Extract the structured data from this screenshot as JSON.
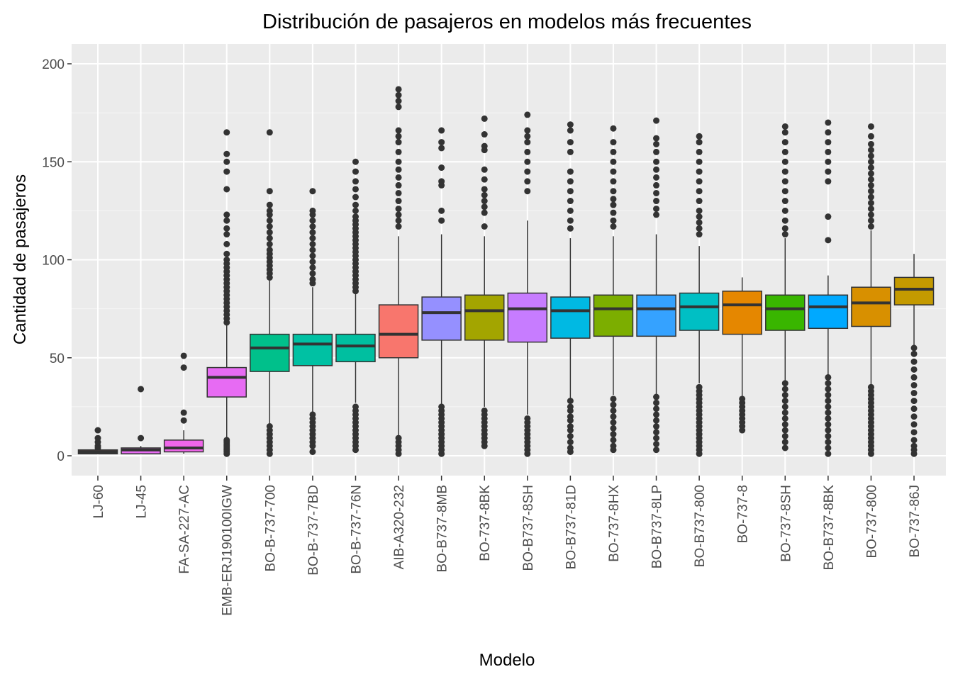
{
  "chart_data": {
    "type": "boxplot",
    "title": "Distribución de pasajeros en modelos más frecuentes",
    "xlabel": "Modelo",
    "ylabel": "Cantidad de pasajeros",
    "ylim": [
      -10,
      210
    ],
    "yticks": [
      0,
      50,
      100,
      150,
      200
    ],
    "grid": true,
    "legend": "none",
    "categories": [
      "LJ-60",
      "LJ-45",
      "FA-SA-227-AC",
      "EMB-ERJ190100IGW",
      "BO-B-737-700",
      "BO-B-737-7BD",
      "BO-B-737-76N",
      "AIB-A320-232",
      "BO-B737-8MB",
      "BO-737-8BK",
      "BO-B737-8SH",
      "BO-B737-81D",
      "BO-737-8HX",
      "BO-B737-8LP",
      "BO-B737-800",
      "BO-737-8",
      "BO-737-8SH",
      "BO-B737-8BK",
      "BO-737-800",
      "BO-737-86J"
    ],
    "boxes": [
      {
        "label": "LJ-60",
        "color": "#F8766D",
        "min": 1,
        "q1": 1,
        "median": 2,
        "q3": 3,
        "max": 3,
        "outliers": [
          4,
          5,
          7,
          9,
          13
        ]
      },
      {
        "label": "LJ-45",
        "color": "#E76BF3",
        "min": 1,
        "q1": 1,
        "median": 3,
        "q3": 4,
        "max": 5,
        "outliers": [
          9,
          34
        ]
      },
      {
        "label": "FA-SA-227-AC",
        "color": "#F066EA",
        "min": 1,
        "q1": 2,
        "median": 4,
        "q3": 8,
        "max": 13,
        "outliers": [
          18,
          22,
          45,
          51
        ]
      },
      {
        "label": "EMB-ERJ190100IGW",
        "color": "#E76BF3",
        "min": 9,
        "q1": 30,
        "median": 40,
        "q3": 45,
        "max": 67,
        "outliers": [
          1,
          2,
          3,
          4,
          5,
          6,
          7,
          8,
          68,
          70,
          72,
          74,
          76,
          78,
          80,
          82,
          84,
          86,
          88,
          90,
          92,
          94,
          96,
          98,
          100,
          103,
          108,
          113,
          116,
          120,
          123,
          136,
          145,
          150,
          154,
          165
        ]
      },
      {
        "label": "BO-B-737-700",
        "color": "#00C08B",
        "min": 16,
        "q1": 43,
        "median": 55,
        "q3": 62,
        "max": 90,
        "outliers": [
          1,
          3,
          5,
          7,
          9,
          11,
          13,
          15,
          91,
          93,
          95,
          97,
          99,
          101,
          103,
          105,
          108,
          111,
          114,
          117,
          120,
          123,
          125,
          128,
          135,
          165
        ]
      },
      {
        "label": "BO-B-737-7BD",
        "color": "#00C1A3",
        "min": 22,
        "q1": 46,
        "median": 57,
        "q3": 62,
        "max": 86,
        "outliers": [
          2,
          5,
          7,
          9,
          11,
          13,
          15,
          17,
          19,
          21,
          88,
          90,
          93,
          96,
          99,
          102,
          105,
          108,
          111,
          114,
          117,
          120,
          123,
          125,
          135
        ]
      },
      {
        "label": "BO-B-737-76N",
        "color": "#00BFA0",
        "min": 27,
        "q1": 48,
        "median": 56,
        "q3": 62,
        "max": 83,
        "outliers": [
          3,
          5,
          7,
          9,
          11,
          13,
          15,
          17,
          19,
          21,
          23,
          25,
          84,
          86,
          88,
          90,
          92,
          94,
          96,
          98,
          100,
          102,
          104,
          106,
          108,
          110,
          112,
          114,
          116,
          118,
          120,
          122,
          125,
          128,
          132,
          136,
          140,
          145,
          150
        ]
      },
      {
        "label": "AIB-A320-232",
        "color": "#F8766D",
        "min": 10,
        "q1": 50,
        "median": 62,
        "q3": 77,
        "max": 112,
        "outliers": [
          1,
          3,
          5,
          7,
          9,
          117,
          120,
          123,
          126,
          130,
          134,
          138,
          142,
          146,
          150,
          155,
          160,
          163,
          166,
          178,
          181,
          184,
          187
        ]
      },
      {
        "label": "BO-B737-8MB",
        "color": "#9590FF",
        "min": 26,
        "q1": 59,
        "median": 73,
        "q3": 81,
        "max": 113,
        "outliers": [
          1,
          3,
          5,
          7,
          9,
          11,
          13,
          15,
          17,
          19,
          21,
          23,
          25,
          120,
          125,
          138,
          140,
          147,
          157,
          160,
          166
        ]
      },
      {
        "label": "BO-737-8BK",
        "color": "#A3A500",
        "min": 25,
        "q1": 59,
        "median": 74,
        "q3": 82,
        "max": 112,
        "outliers": [
          5,
          7,
          9,
          11,
          13,
          15,
          17,
          19,
          21,
          23,
          117,
          124,
          127,
          130,
          133,
          136,
          141,
          146,
          156,
          158,
          164,
          172
        ]
      },
      {
        "label": "BO-B737-8SH",
        "color": "#C77CFF",
        "min": 21,
        "q1": 58,
        "median": 75,
        "q3": 83,
        "max": 120,
        "outliers": [
          1,
          3,
          5,
          7,
          9,
          11,
          13,
          15,
          17,
          19,
          135,
          140,
          145,
          150,
          155,
          160,
          163,
          166,
          174
        ]
      },
      {
        "label": "BO-B737-81D",
        "color": "#00B9E3",
        "min": 29,
        "q1": 60,
        "median": 74,
        "q3": 81,
        "max": 111,
        "outliers": [
          2,
          4,
          7,
          10,
          13,
          15,
          18,
          20,
          23,
          25,
          28,
          116,
          120,
          125,
          130,
          135,
          140,
          145,
          155,
          160,
          166,
          169
        ]
      },
      {
        "label": "BO-737-8HX",
        "color": "#7CAE00",
        "min": 31,
        "q1": 61,
        "median": 75,
        "q3": 82,
        "max": 112,
        "outliers": [
          3,
          5,
          8,
          11,
          14,
          17,
          20,
          23,
          26,
          29,
          117,
          120,
          124,
          128,
          131,
          135,
          140,
          145,
          150,
          155,
          160,
          167
        ]
      },
      {
        "label": "BO-B737-8LP",
        "color": "#35A2FF",
        "min": 30,
        "q1": 61,
        "median": 75,
        "q3": 82,
        "max": 113,
        "outliers": [
          3,
          6,
          9,
          12,
          15,
          18,
          21,
          24,
          27,
          30,
          123,
          126,
          130,
          134,
          138,
          142,
          146,
          150,
          155,
          159,
          162,
          171
        ]
      },
      {
        "label": "BO-B737-800",
        "color": "#00BFC4",
        "min": 37,
        "q1": 64,
        "median": 76,
        "q3": 83,
        "max": 107,
        "outliers": [
          1,
          3,
          5,
          7,
          9,
          11,
          13,
          15,
          17,
          19,
          21,
          23,
          25,
          27,
          29,
          31,
          33,
          35,
          113,
          116,
          119,
          122,
          125,
          130,
          135,
          140,
          145,
          150,
          155,
          160,
          163
        ]
      },
      {
        "label": "BO-737-8",
        "color": "#E58700",
        "min": 30,
        "q1": 62,
        "median": 77,
        "q3": 84,
        "max": 91,
        "outliers": [
          13,
          15,
          17,
          19,
          21,
          23,
          25,
          27,
          29
        ]
      },
      {
        "label": "BO-737-8SH",
        "color": "#39B600",
        "min": 38,
        "q1": 64,
        "median": 75,
        "q3": 82,
        "max": 111,
        "outliers": [
          4,
          7,
          10,
          13,
          16,
          19,
          22,
          25,
          28,
          31,
          34,
          37,
          113,
          116,
          120,
          125,
          130,
          135,
          140,
          145,
          150,
          155,
          160,
          165,
          168
        ]
      },
      {
        "label": "BO-B737-8BK",
        "color": "#00A9FF",
        "min": 41,
        "q1": 65,
        "median": 76,
        "q3": 82,
        "max": 92,
        "outliers": [
          1,
          4,
          7,
          10,
          13,
          16,
          19,
          22,
          25,
          28,
          31,
          34,
          37,
          40,
          110,
          122,
          140,
          145,
          150,
          155,
          160,
          165,
          170
        ]
      },
      {
        "label": "BO-737-800",
        "color": "#D89000",
        "min": 36,
        "q1": 66,
        "median": 78,
        "q3": 86,
        "max": 115,
        "outliers": [
          1,
          3,
          5,
          7,
          9,
          11,
          13,
          15,
          17,
          19,
          21,
          23,
          25,
          27,
          29,
          31,
          33,
          35,
          117,
          120,
          123,
          126,
          129,
          132,
          135,
          138,
          141,
          144,
          147,
          150,
          153,
          156,
          159,
          163,
          168
        ]
      },
      {
        "label": "BO-737-86J",
        "color": "#C49A00",
        "min": 56,
        "q1": 77,
        "median": 85,
        "q3": 91,
        "max": 103,
        "outliers": [
          1,
          3,
          5,
          8,
          12,
          16,
          20,
          24,
          28,
          32,
          36,
          40,
          44,
          48,
          52,
          55
        ]
      }
    ]
  }
}
